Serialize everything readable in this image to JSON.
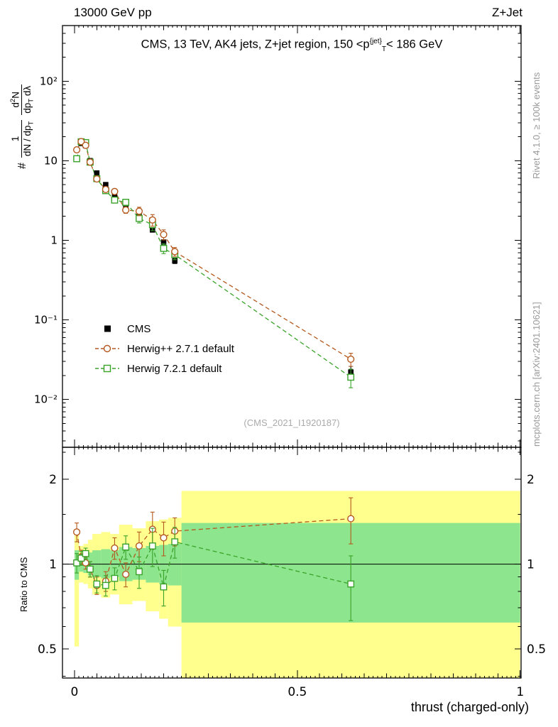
{
  "header": {
    "left": "13000 GeV pp",
    "right": "Z+Jet"
  },
  "watermarks": {
    "rivet": "Rivet 4.1.0, ≥ 100k events",
    "mcplots": "mcplots.cern.ch [arXiv:2401.10621]",
    "analysis": "(CMS_2021_I1920187)"
  },
  "title_segments": [
    {
      "t": "CMS, 13 TeV, AK4 jets, Z+jet region, 150 <p"
    },
    {
      "t": "{jet}",
      "s": "sup"
    },
    {
      "t": "T",
      "s": "sub"
    },
    {
      "t": "< 186 GeV"
    }
  ],
  "axes": {
    "x_label": "thrust (charged-only)",
    "ratio_label": "Ratio to CMS",
    "ylabel_prefix": [
      {
        "t": "#"
      }
    ],
    "ylabel_frac1_num": [
      {
        "t": "1"
      }
    ],
    "ylabel_frac1_den": [
      {
        "t": "dN / dp"
      },
      {
        "t": "T",
        "s": "sub"
      }
    ],
    "ylabel_frac2_num": [
      {
        "t": "d"
      },
      {
        "t": "2",
        "s": "sup"
      },
      {
        "t": "N"
      }
    ],
    "ylabel_frac2_den": [
      {
        "t": "dp"
      },
      {
        "t": "T",
        "s": "sub"
      },
      {
        "t": " dλ"
      }
    ]
  },
  "legend": [
    {
      "label": "CMS",
      "marker": "filled-square"
    },
    {
      "label": "Herwig++ 2.7.1 default",
      "marker": "open-circle"
    },
    {
      "label": "Herwig 7.2.1 default",
      "marker": "open-square"
    }
  ],
  "colors": {
    "cms": "#000000",
    "herwigpp": "#b4591f",
    "herwig7": "#3aa32a",
    "band_yellow": "#ffff8e",
    "band_green": "#8de58d",
    "watermark": "#9a9a9a",
    "frame": "#000000"
  },
  "chart_data": {
    "type": "line",
    "title": "CMS, 13 TeV, AK4 jets, Z+jet region, 150 <p_T^{jet}< 186 GeV",
    "xlabel": "thrust (charged-only)",
    "ylabel": "# 1/(dN/dp_T) d^2N/(dp_T dλ)",
    "ratio_ylabel": "Ratio to CMS",
    "x": [
      0.005,
      0.015,
      0.025,
      0.035,
      0.05,
      0.07,
      0.09,
      0.115,
      0.145,
      0.175,
      0.2,
      0.225,
      0.62
    ],
    "series": [
      {
        "name": "CMS",
        "marker": "filled-square",
        "color": "#000000",
        "values": [
          10.5,
          16.5,
          15.5,
          10.0,
          7.0,
          5.0,
          3.6,
          2.6,
          2.0,
          1.35,
          0.95,
          0.55,
          0.022
        ],
        "errors": [
          0.5,
          0.7,
          0.7,
          0.45,
          0.3,
          0.22,
          0.18,
          0.13,
          0.1,
          0.08,
          0.06,
          0.04,
          0.004
        ]
      },
      {
        "name": "Herwig++ 2.7.1 default",
        "marker": "open-circle",
        "color": "#b4591f",
        "values": [
          13.7,
          17.4,
          15.6,
          9.6,
          5.9,
          4.35,
          4.1,
          2.4,
          2.32,
          1.8,
          1.18,
          0.72,
          0.032
        ],
        "errors": [
          0.7,
          0.8,
          0.7,
          0.5,
          0.3,
          0.28,
          0.33,
          0.22,
          0.28,
          0.3,
          0.17,
          0.09,
          0.006
        ]
      },
      {
        "name": "Herwig 7.2.1 default",
        "marker": "open-square",
        "color": "#3aa32a",
        "values": [
          10.6,
          17.3,
          16.9,
          9.6,
          5.95,
          4.2,
          3.2,
          3.0,
          1.88,
          1.57,
          0.79,
          0.66,
          0.019
        ],
        "errors": [
          0.6,
          0.8,
          0.7,
          0.5,
          0.3,
          0.26,
          0.26,
          0.28,
          0.23,
          0.25,
          0.11,
          0.09,
          0.005
        ]
      }
    ],
    "ratio_series": [
      {
        "name": "Herwig++ 2.7.1 default",
        "marker": "open-circle",
        "values": [
          1.3,
          1.06,
          1.01,
          0.96,
          0.84,
          0.87,
          1.14,
          0.92,
          1.16,
          1.33,
          1.24,
          1.31,
          1.45
        ],
        "errors": [
          0.1,
          0.06,
          0.05,
          0.06,
          0.06,
          0.07,
          0.1,
          0.09,
          0.14,
          0.2,
          0.17,
          0.15,
          0.27
        ]
      },
      {
        "name": "Herwig 7.2.1 default",
        "marker": "open-square",
        "values": [
          1.01,
          1.05,
          1.09,
          0.96,
          0.85,
          0.84,
          0.89,
          1.15,
          0.94,
          1.16,
          0.83,
          1.2,
          0.85
        ],
        "errors": [
          0.08,
          0.06,
          0.05,
          0.06,
          0.06,
          0.07,
          0.08,
          0.11,
          0.12,
          0.18,
          0.12,
          0.15,
          0.22
        ]
      }
    ],
    "bands": [
      {
        "x0": 0.0,
        "x1": 0.01,
        "yellow": [
          0.51,
          1.32
        ],
        "green": [
          0.88,
          1.12
        ]
      },
      {
        "x0": 0.01,
        "x1": 0.02,
        "yellow": [
          0.86,
          1.16
        ],
        "green": [
          0.94,
          1.07
        ]
      },
      {
        "x0": 0.02,
        "x1": 0.03,
        "yellow": [
          0.85,
          1.18
        ],
        "green": [
          0.93,
          1.08
        ]
      },
      {
        "x0": 0.03,
        "x1": 0.04,
        "yellow": [
          0.82,
          1.22
        ],
        "green": [
          0.91,
          1.1
        ]
      },
      {
        "x0": 0.04,
        "x1": 0.06,
        "yellow": [
          0.78,
          1.28
        ],
        "green": [
          0.9,
          1.12
        ]
      },
      {
        "x0": 0.06,
        "x1": 0.08,
        "yellow": [
          0.76,
          1.3
        ],
        "green": [
          0.89,
          1.13
        ]
      },
      {
        "x0": 0.08,
        "x1": 0.1,
        "yellow": [
          0.78,
          1.28
        ],
        "green": [
          0.9,
          1.12
        ]
      },
      {
        "x0": 0.1,
        "x1": 0.13,
        "yellow": [
          0.72,
          1.38
        ],
        "green": [
          0.87,
          1.15
        ]
      },
      {
        "x0": 0.13,
        "x1": 0.16,
        "yellow": [
          0.74,
          1.34
        ],
        "green": [
          0.88,
          1.14
        ]
      },
      {
        "x0": 0.16,
        "x1": 0.19,
        "yellow": [
          0.68,
          1.42
        ],
        "green": [
          0.86,
          1.16
        ]
      },
      {
        "x0": 0.19,
        "x1": 0.21,
        "yellow": [
          0.64,
          1.44
        ],
        "green": [
          0.85,
          1.17
        ]
      },
      {
        "x0": 0.21,
        "x1": 0.24,
        "yellow": [
          0.6,
          1.46
        ],
        "green": [
          0.84,
          1.18
        ]
      },
      {
        "x0": 0.24,
        "x1": 1.0,
        "yellow": [
          0.37,
          1.82
        ],
        "green": [
          0.62,
          1.4
        ]
      }
    ],
    "layout": {
      "x_range": [
        -0.027,
        1.002
      ],
      "main_y_range": [
        0.0025,
        500
      ],
      "ratio_y_range": [
        0.394,
        2.6
      ],
      "log_y": true,
      "grid": false,
      "legend_position": "inside-left",
      "x_ticks": [
        0,
        0.5,
        1
      ],
      "x_tick_labels": [
        "0",
        "0.5",
        "1"
      ],
      "main_y_ticks": [
        100,
        10,
        1,
        0.1,
        0.01
      ],
      "main_y_tick_labels": [
        "10²",
        "10",
        "1",
        "10⁻¹",
        "10⁻²"
      ],
      "ratio_y_ticks": [
        2,
        1,
        0.5
      ],
      "ratio_y_tick_labels": [
        "2",
        "1",
        "0.5"
      ],
      "ratio_y_minor_ticks": [
        0.4,
        0.6,
        0.7,
        0.8,
        0.9,
        1.5,
        2.5
      ]
    }
  }
}
